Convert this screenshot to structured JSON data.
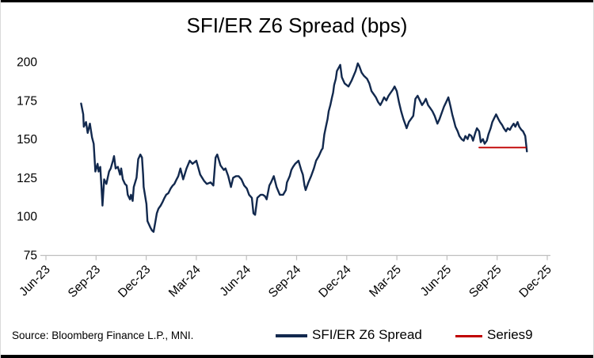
{
  "title": "SFI/ER Z6 Spread (bps)",
  "source_note": "Source: Bloomberg Finance L.P., MNI.",
  "colors": {
    "spread_line": "#12294e",
    "series9_line": "#c00000",
    "axis": "#bfbfbf"
  },
  "chart_data": {
    "type": "line",
    "title": "SFI/ER Z6 Spread (bps)",
    "xlabel": "",
    "ylabel": "",
    "ylim": [
      75,
      200
    ],
    "yticks": [
      75,
      100,
      125,
      150,
      175,
      200
    ],
    "xticks": [
      "Jun-23",
      "Sep-23",
      "Dec-23",
      "Mar-24",
      "Jun-24",
      "Sep-24",
      "Dec-24",
      "Mar-25",
      "Jun-25",
      "Sep-25",
      "Dec-25"
    ],
    "x_range": [
      "2023-06-01",
      "2025-12-01"
    ],
    "grid": false,
    "legend_position": "bottom",
    "series": [
      {
        "name": "SFI/ER Z6 Spread",
        "color": "#12294e",
        "stroke_width": 2.4,
        "points": [
          [
            "2023-08-04",
            173
          ],
          [
            "2023-08-08",
            166
          ],
          [
            "2023-08-09",
            158
          ],
          [
            "2023-08-13",
            161
          ],
          [
            "2023-08-16",
            154
          ],
          [
            "2023-08-20",
            160
          ],
          [
            "2023-08-24",
            151
          ],
          [
            "2023-08-27",
            147
          ],
          [
            "2023-08-30",
            129
          ],
          [
            "2023-09-03",
            134
          ],
          [
            "2023-09-05",
            129
          ],
          [
            "2023-09-08",
            132
          ],
          [
            "2023-09-10",
            120
          ],
          [
            "2023-09-12",
            107
          ],
          [
            "2023-09-15",
            124
          ],
          [
            "2023-09-19",
            121
          ],
          [
            "2023-09-24",
            129
          ],
          [
            "2023-09-27",
            131
          ],
          [
            "2023-10-01",
            136
          ],
          [
            "2023-10-03",
            139
          ],
          [
            "2023-10-06",
            131
          ],
          [
            "2023-10-10",
            132
          ],
          [
            "2023-10-14",
            127
          ],
          [
            "2023-10-16",
            131
          ],
          [
            "2023-10-19",
            124
          ],
          [
            "2023-10-23",
            121
          ],
          [
            "2023-10-26",
            120
          ],
          [
            "2023-10-28",
            114
          ],
          [
            "2023-11-01",
            111
          ],
          [
            "2023-11-03",
            114
          ],
          [
            "2023-11-06",
            110
          ],
          [
            "2023-11-08",
            119
          ],
          [
            "2023-11-13",
            125
          ],
          [
            "2023-11-16",
            137
          ],
          [
            "2023-11-20",
            140
          ],
          [
            "2023-11-23",
            138
          ],
          [
            "2023-11-25",
            127
          ],
          [
            "2023-11-26",
            119
          ],
          [
            "2023-12-01",
            108
          ],
          [
            "2023-12-03",
            97
          ],
          [
            "2023-12-08",
            93
          ],
          [
            "2023-12-11",
            91
          ],
          [
            "2023-12-14",
            90
          ],
          [
            "2023-12-17",
            96
          ],
          [
            "2023-12-20",
            102
          ],
          [
            "2023-12-23",
            105
          ],
          [
            "2023-12-27",
            107
          ],
          [
            "2023-12-30",
            109
          ],
          [
            "2024-01-03",
            112
          ],
          [
            "2024-01-06",
            114
          ],
          [
            "2024-01-10",
            115
          ],
          [
            "2024-01-14",
            118
          ],
          [
            "2024-01-18",
            120
          ],
          [
            "2024-01-21",
            121
          ],
          [
            "2024-01-25",
            124
          ],
          [
            "2024-01-28",
            126
          ],
          [
            "2024-02-01",
            131
          ],
          [
            "2024-02-06",
            124
          ],
          [
            "2024-02-12",
            131
          ],
          [
            "2024-02-18",
            136
          ],
          [
            "2024-02-23",
            134
          ],
          [
            "2024-03-01",
            136
          ],
          [
            "2024-03-08",
            127
          ],
          [
            "2024-03-15",
            123
          ],
          [
            "2024-03-20",
            121
          ],
          [
            "2024-03-27",
            122
          ],
          [
            "2024-04-01",
            120
          ],
          [
            "2024-04-05",
            138
          ],
          [
            "2024-04-08",
            140
          ],
          [
            "2024-04-14",
            133
          ],
          [
            "2024-04-20",
            130
          ],
          [
            "2024-04-23",
            131
          ],
          [
            "2024-04-28",
            126
          ],
          [
            "2024-05-03",
            119
          ],
          [
            "2024-05-07",
            125
          ],
          [
            "2024-05-12",
            126
          ],
          [
            "2024-05-17",
            126
          ],
          [
            "2024-05-22",
            124
          ],
          [
            "2024-05-27",
            120
          ],
          [
            "2024-06-01",
            118
          ],
          [
            "2024-06-05",
            114
          ],
          [
            "2024-06-10",
            112
          ],
          [
            "2024-06-13",
            102
          ],
          [
            "2024-06-16",
            101
          ],
          [
            "2024-06-20",
            112
          ],
          [
            "2024-06-26",
            114
          ],
          [
            "2024-06-30",
            114
          ],
          [
            "2024-07-04",
            113
          ],
          [
            "2024-07-07",
            111
          ],
          [
            "2024-07-12",
            120
          ],
          [
            "2024-07-15",
            122
          ],
          [
            "2024-07-20",
            126
          ],
          [
            "2024-07-25",
            119
          ],
          [
            "2024-07-31",
            114
          ],
          [
            "2024-08-06",
            114
          ],
          [
            "2024-08-11",
            117
          ],
          [
            "2024-08-13",
            122
          ],
          [
            "2024-08-18",
            126
          ],
          [
            "2024-08-21",
            130
          ],
          [
            "2024-08-24",
            132
          ],
          [
            "2024-08-28",
            134
          ],
          [
            "2024-08-31",
            135
          ],
          [
            "2024-09-03",
            136
          ],
          [
            "2024-09-08",
            130
          ],
          [
            "2024-09-11",
            127
          ],
          [
            "2024-09-14",
            120
          ],
          [
            "2024-09-16",
            117
          ],
          [
            "2024-09-21",
            122
          ],
          [
            "2024-09-26",
            126
          ],
          [
            "2024-10-01",
            131
          ],
          [
            "2024-10-05",
            136
          ],
          [
            "2024-10-10",
            139
          ],
          [
            "2024-10-15",
            143
          ],
          [
            "2024-10-17",
            144
          ],
          [
            "2024-10-20",
            153
          ],
          [
            "2024-10-23",
            158
          ],
          [
            "2024-10-26",
            163
          ],
          [
            "2024-10-28",
            168
          ],
          [
            "2024-10-31",
            172
          ],
          [
            "2024-11-03",
            177
          ],
          [
            "2024-11-05",
            180
          ],
          [
            "2024-11-07",
            185
          ],
          [
            "2024-11-10",
            189
          ],
          [
            "2024-11-12",
            194
          ],
          [
            "2024-11-15",
            196
          ],
          [
            "2024-11-18",
            198
          ],
          [
            "2024-11-21",
            190
          ],
          [
            "2024-11-26",
            186
          ],
          [
            "2024-12-03",
            184
          ],
          [
            "2024-12-09",
            188
          ],
          [
            "2024-12-16",
            194
          ],
          [
            "2024-12-20",
            199
          ],
          [
            "2024-12-23",
            197
          ],
          [
            "2024-12-27",
            193
          ],
          [
            "2024-12-31",
            191
          ],
          [
            "2025-01-06",
            189
          ],
          [
            "2025-01-10",
            186
          ],
          [
            "2025-01-14",
            181
          ],
          [
            "2025-01-18",
            179
          ],
          [
            "2025-01-22",
            177
          ],
          [
            "2025-01-26",
            174
          ],
          [
            "2025-01-30",
            172
          ],
          [
            "2025-02-02",
            174
          ],
          [
            "2025-02-06",
            177
          ],
          [
            "2025-02-10",
            175
          ],
          [
            "2025-02-14",
            178
          ],
          [
            "2025-02-18",
            180
          ],
          [
            "2025-02-22",
            182
          ],
          [
            "2025-02-25",
            184
          ],
          [
            "2025-03-01",
            181
          ],
          [
            "2025-03-05",
            174
          ],
          [
            "2025-03-09",
            168
          ],
          [
            "2025-03-13",
            163
          ],
          [
            "2025-03-17",
            159
          ],
          [
            "2025-03-19",
            157
          ],
          [
            "2025-03-23",
            161
          ],
          [
            "2025-03-27",
            163
          ],
          [
            "2025-03-31",
            165
          ],
          [
            "2025-04-04",
            176
          ],
          [
            "2025-04-08",
            178
          ],
          [
            "2025-04-12",
            175
          ],
          [
            "2025-04-16",
            172
          ],
          [
            "2025-04-20",
            174
          ],
          [
            "2025-04-23",
            176
          ],
          [
            "2025-04-27",
            172
          ],
          [
            "2025-05-01",
            170
          ],
          [
            "2025-05-05",
            168
          ],
          [
            "2025-05-09",
            165
          ],
          [
            "2025-05-14",
            160
          ],
          [
            "2025-05-18",
            163
          ],
          [
            "2025-05-22",
            167
          ],
          [
            "2025-05-26",
            171
          ],
          [
            "2025-05-30",
            174
          ],
          [
            "2025-06-03",
            177
          ],
          [
            "2025-06-07",
            171
          ],
          [
            "2025-06-10",
            166
          ],
          [
            "2025-06-13",
            162
          ],
          [
            "2025-06-16",
            158
          ],
          [
            "2025-06-20",
            155
          ],
          [
            "2025-06-23",
            152
          ],
          [
            "2025-06-27",
            150
          ],
          [
            "2025-07-01",
            149
          ],
          [
            "2025-07-04",
            152
          ],
          [
            "2025-07-08",
            150
          ],
          [
            "2025-07-11",
            153
          ],
          [
            "2025-07-15",
            152
          ],
          [
            "2025-07-18",
            149
          ],
          [
            "2025-07-22",
            154
          ],
          [
            "2025-07-25",
            157
          ],
          [
            "2025-07-29",
            155
          ],
          [
            "2025-08-01",
            148
          ],
          [
            "2025-08-05",
            150
          ],
          [
            "2025-08-08",
            147
          ],
          [
            "2025-08-12",
            149
          ],
          [
            "2025-08-15",
            153
          ],
          [
            "2025-08-19",
            157
          ],
          [
            "2025-08-22",
            161
          ],
          [
            "2025-08-26",
            164
          ],
          [
            "2025-08-29",
            166
          ],
          [
            "2025-09-02",
            163
          ],
          [
            "2025-09-05",
            161
          ],
          [
            "2025-09-09",
            159
          ],
          [
            "2025-09-12",
            157
          ],
          [
            "2025-09-16",
            155
          ],
          [
            "2025-09-19",
            157
          ],
          [
            "2025-09-23",
            156
          ],
          [
            "2025-09-26",
            158
          ],
          [
            "2025-09-30",
            160
          ],
          [
            "2025-10-03",
            158
          ],
          [
            "2025-10-07",
            161
          ],
          [
            "2025-10-10",
            158
          ],
          [
            "2025-10-14",
            156
          ],
          [
            "2025-10-17",
            155
          ],
          [
            "2025-10-21",
            152
          ],
          [
            "2025-10-24",
            142
          ]
        ]
      },
      {
        "name": "Series9",
        "color": "#c00000",
        "stroke_width": 1.8,
        "points": [
          [
            "2025-07-29",
            144.5
          ],
          [
            "2025-10-22",
            144.5
          ]
        ]
      }
    ]
  }
}
